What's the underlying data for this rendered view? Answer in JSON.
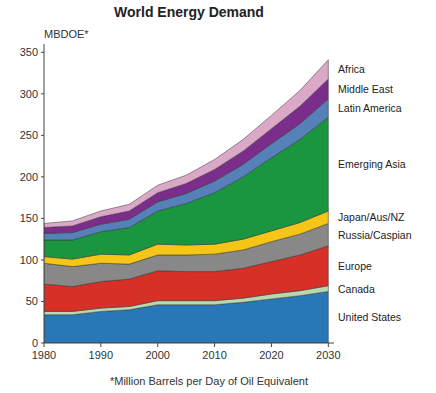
{
  "chart_data": {
    "type": "area",
    "stacked": true,
    "grid": false,
    "title": "World Energy Demand",
    "ylabel": "MBDOE*",
    "xlabel": "*Million Barrels per Day of Oil Equivalent",
    "x": [
      1980,
      1985,
      1990,
      1995,
      2000,
      2005,
      2010,
      2015,
      2020,
      2025,
      2030
    ],
    "xlim": [
      1980,
      2031
    ],
    "ylim": [
      0,
      360
    ],
    "xticks": [
      1980,
      1990,
      2000,
      2010,
      2020,
      2030
    ],
    "yticks": [
      0,
      50,
      100,
      150,
      200,
      250,
      300,
      350
    ],
    "series": [
      {
        "name": "United States",
        "color": "#2878b8",
        "values": [
          34,
          34,
          38,
          40,
          46,
          46,
          46,
          49,
          53,
          57,
          62
        ]
      },
      {
        "name": "Canada",
        "color": "#b8d8b0",
        "values": [
          4,
          4,
          4,
          4,
          5,
          5,
          5,
          5,
          6,
          6,
          7
        ]
      },
      {
        "name": "Europe",
        "color": "#d73027",
        "values": [
          33,
          30,
          32,
          33,
          36,
          35,
          35,
          36,
          39,
          43,
          48
        ]
      },
      {
        "name": "Russia/Caspian",
        "color": "#888888",
        "values": [
          25,
          24,
          22,
          18,
          19,
          20,
          21,
          22,
          24,
          25,
          27
        ]
      },
      {
        "name": "Japan/Aus/NZ",
        "color": "#f5c518",
        "values": [
          8,
          9,
          11,
          11,
          13,
          12,
          12,
          13,
          13,
          14,
          15
        ]
      },
      {
        "name": "Emerging Asia",
        "color": "#1a9641",
        "values": [
          20,
          23,
          27,
          33,
          40,
          50,
          62,
          75,
          88,
          100,
          113
        ]
      },
      {
        "name": "Latin America",
        "color": "#5580b8",
        "values": [
          8,
          9,
          9,
          10,
          11,
          12,
          14,
          15,
          17,
          19,
          22
        ]
      },
      {
        "name": "Middle East",
        "color": "#7b2d8b",
        "values": [
          7,
          8,
          9,
          10,
          11,
          12,
          14,
          16,
          18,
          21,
          24
        ]
      },
      {
        "name": "Africa",
        "color": "#dba8c8",
        "values": [
          5,
          6,
          7,
          8,
          9,
          10,
          12,
          14,
          16,
          19,
          23
        ]
      }
    ]
  }
}
